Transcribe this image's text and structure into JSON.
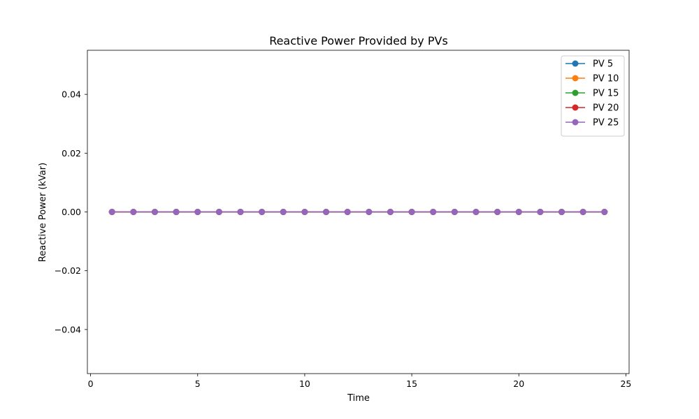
{
  "chart_data": {
    "type": "line",
    "title": "Reactive Power Provided by PVs",
    "xlabel": "Time",
    "ylabel": "Reactive Power (kVar)",
    "xlim": [
      -0.15,
      25.15
    ],
    "ylim": [
      -0.055,
      0.055
    ],
    "xticks": [
      0,
      5,
      10,
      15,
      20,
      25
    ],
    "xtick_labels": [
      "0",
      "5",
      "10",
      "15",
      "20",
      "25"
    ],
    "yticks": [
      0.04,
      0.02,
      0.0,
      -0.02,
      -0.04
    ],
    "ytick_labels": [
      "0.04",
      "0.02",
      "0.00",
      "−0.02",
      "−0.04"
    ],
    "grid": false,
    "legend_position": "top-right",
    "x": [
      1,
      2,
      3,
      4,
      5,
      6,
      7,
      8,
      9,
      10,
      11,
      12,
      13,
      14,
      15,
      16,
      17,
      18,
      19,
      20,
      21,
      22,
      23,
      24
    ],
    "series": [
      {
        "name": "PV 5",
        "color": "#1f77b4",
        "marker": "circle",
        "values": [
          0,
          0,
          0,
          0,
          0,
          0,
          0,
          0,
          0,
          0,
          0,
          0,
          0,
          0,
          0,
          0,
          0,
          0,
          0,
          0,
          0,
          0,
          0,
          0
        ]
      },
      {
        "name": "PV 10",
        "color": "#ff7f0e",
        "marker": "circle",
        "values": [
          0,
          0,
          0,
          0,
          0,
          0,
          0,
          0,
          0,
          0,
          0,
          0,
          0,
          0,
          0,
          0,
          0,
          0,
          0,
          0,
          0,
          0,
          0,
          0
        ]
      },
      {
        "name": "PV 15",
        "color": "#2ca02c",
        "marker": "circle",
        "values": [
          0,
          0,
          0,
          0,
          0,
          0,
          0,
          0,
          0,
          0,
          0,
          0,
          0,
          0,
          0,
          0,
          0,
          0,
          0,
          0,
          0,
          0,
          0,
          0
        ]
      },
      {
        "name": "PV 20",
        "color": "#d62728",
        "marker": "circle",
        "values": [
          0,
          0,
          0,
          0,
          0,
          0,
          0,
          0,
          0,
          0,
          0,
          0,
          0,
          0,
          0,
          0,
          0,
          0,
          0,
          0,
          0,
          0,
          0,
          0
        ]
      },
      {
        "name": "PV 25",
        "color": "#9467bd",
        "marker": "circle",
        "values": [
          0,
          0,
          0,
          0,
          0,
          0,
          0,
          0,
          0,
          0,
          0,
          0,
          0,
          0,
          0,
          0,
          0,
          0,
          0,
          0,
          0,
          0,
          0,
          0
        ]
      }
    ]
  }
}
